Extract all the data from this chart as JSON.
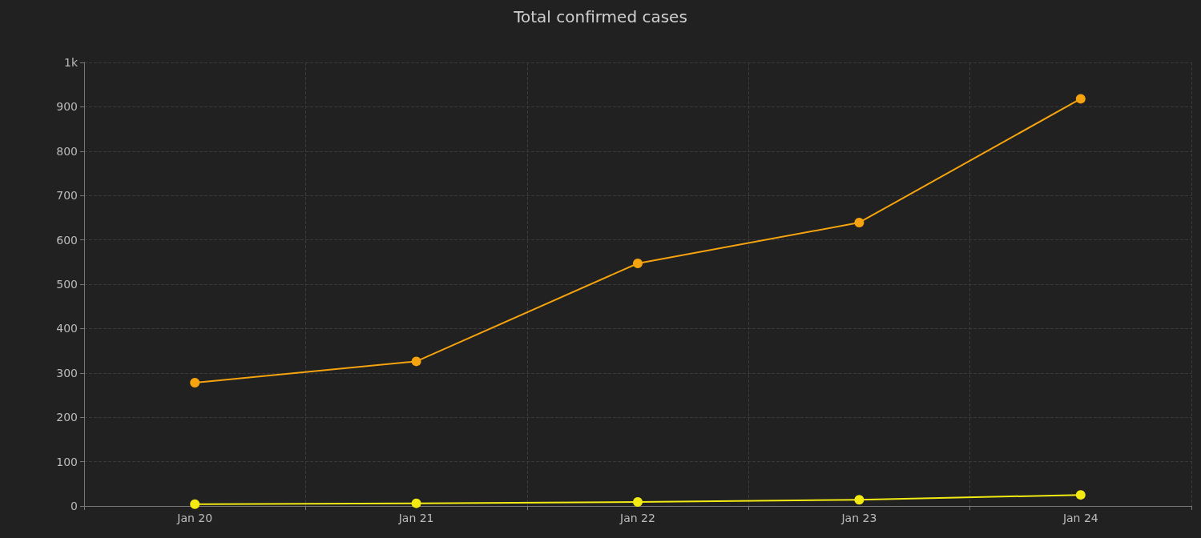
{
  "chart_data": {
    "type": "line",
    "title": "Total confirmed cases",
    "categories": [
      "Jan 20",
      "Jan 21",
      "Jan 22",
      "Jan 23",
      "Jan 24"
    ],
    "series": [
      {
        "color": "#f5a30f",
        "values": [
          278,
          326,
          547,
          639,
          918
        ]
      },
      {
        "color": "#f2ea12",
        "values": [
          4,
          6,
          9,
          14,
          25
        ]
      }
    ],
    "ylim": [
      0,
      1000
    ],
    "yticks": [
      0,
      100,
      200,
      300,
      400,
      500,
      600,
      700,
      800,
      900,
      {
        "value": 1000,
        "label": "1k"
      }
    ],
    "grid": true,
    "marker": "circle",
    "line_style": "solid"
  }
}
